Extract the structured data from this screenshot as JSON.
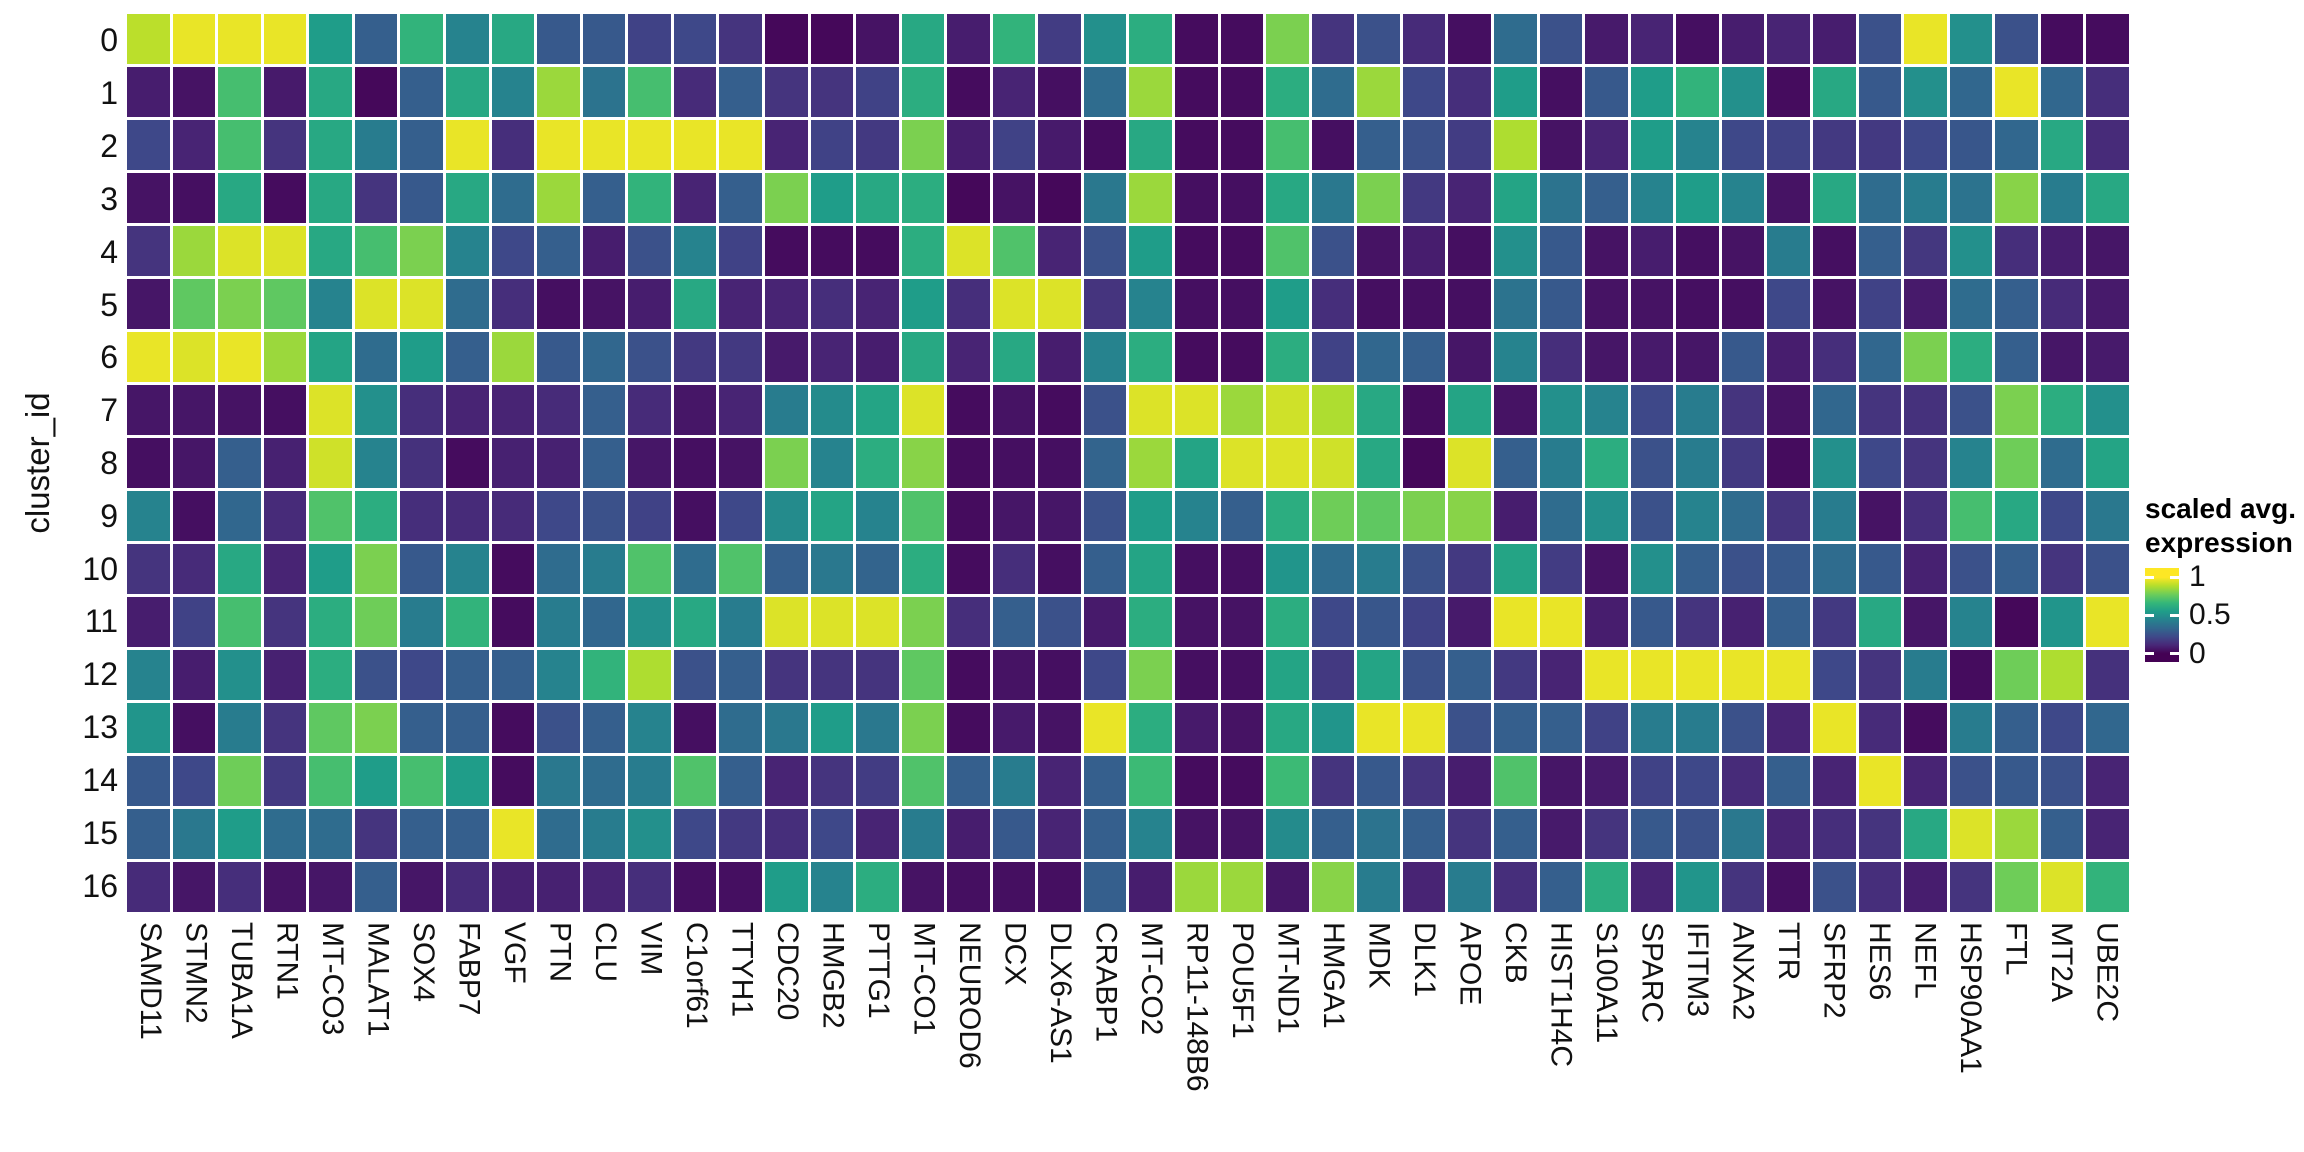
{
  "y_axis": {
    "title": "cluster_id",
    "labels": [
      "0",
      "1",
      "2",
      "3",
      "4",
      "5",
      "6",
      "7",
      "8",
      "9",
      "10",
      "11",
      "12",
      "13",
      "14",
      "15",
      "16"
    ]
  },
  "legend": {
    "title_line1": "scaled avg.",
    "title_line2": "expression",
    "tick_labels": [
      "1",
      "0.5",
      "0"
    ]
  },
  "colors": {
    "background": "#ffffff",
    "cell_gap": "#ffffff",
    "text": "#000000",
    "viridis_stops": [
      "#440154",
      "#482878",
      "#3e4989",
      "#31688e",
      "#26828e",
      "#1f9e89",
      "#35b779",
      "#6dcd59",
      "#b4de2c",
      "#fde725"
    ]
  },
  "chart_data": {
    "type": "heatmap",
    "title": "",
    "xlabel": "",
    "ylabel": "cluster_id",
    "legend_title": "scaled avg. expression",
    "colormap": "viridis",
    "color_range": [
      0,
      1
    ],
    "legend_ticks": [
      1,
      0.5,
      0
    ],
    "grid": "white gaps between tiles",
    "x_categories": [
      "SAMD11",
      "STMN2",
      "TUBA1A",
      "RTN1",
      "MT-CO3",
      "MALAT1",
      "SOX4",
      "FABP7",
      "VGF",
      "PTN",
      "CLU",
      "VIM",
      "C1orf61",
      "TTYH1",
      "CDC20",
      "HMGB2",
      "PTTG1",
      "MT-CO1",
      "NEUROD6",
      "DCX",
      "DLX6-AS1",
      "CRABP1",
      "MT-CO2",
      "RP11-148B6",
      "POU5F1",
      "MT-ND1",
      "HMGA1",
      "MDK",
      "DLK1",
      "APOE",
      "CKB",
      "HIST1H4C",
      "S100A11",
      "SPARC",
      "IFITM3",
      "ANXA2",
      "TTR",
      "SFRP2",
      "HES6",
      "NEFL",
      "HSP90AA1",
      "FTL",
      "MT2A",
      "UBE2C"
    ],
    "y_categories": [
      "0",
      "1",
      "2",
      "3",
      "4",
      "5",
      "6",
      "7",
      "8",
      "9",
      "10",
      "11",
      "12",
      "13",
      "14",
      "15",
      "16"
    ],
    "values": [
      [
        0.9,
        0.97,
        0.97,
        0.97,
        0.55,
        0.3,
        0.65,
        0.45,
        0.6,
        0.28,
        0.28,
        0.2,
        0.22,
        0.15,
        0.02,
        0.02,
        0.05,
        0.6,
        0.08,
        0.65,
        0.18,
        0.5,
        0.62,
        0.03,
        0.03,
        0.8,
        0.15,
        0.25,
        0.12,
        0.04,
        0.35,
        0.25,
        0.07,
        0.1,
        0.04,
        0.08,
        0.1,
        0.08,
        0.25,
        0.97,
        0.5,
        0.25,
        0.03,
        0.03
      ],
      [
        0.08,
        0.05,
        0.7,
        0.07,
        0.6,
        0.02,
        0.3,
        0.6,
        0.45,
        0.85,
        0.38,
        0.7,
        0.12,
        0.3,
        0.15,
        0.15,
        0.2,
        0.62,
        0.03,
        0.1,
        0.04,
        0.35,
        0.85,
        0.03,
        0.03,
        0.62,
        0.35,
        0.85,
        0.22,
        0.13,
        0.55,
        0.04,
        0.28,
        0.55,
        0.65,
        0.5,
        0.03,
        0.6,
        0.28,
        0.5,
        0.33,
        0.97,
        0.33,
        0.13
      ],
      [
        0.22,
        0.1,
        0.7,
        0.15,
        0.6,
        0.42,
        0.3,
        0.97,
        0.13,
        0.97,
        0.97,
        0.97,
        0.97,
        0.97,
        0.1,
        0.2,
        0.17,
        0.8,
        0.08,
        0.2,
        0.07,
        0.03,
        0.6,
        0.03,
        0.03,
        0.7,
        0.04,
        0.3,
        0.25,
        0.18,
        0.88,
        0.05,
        0.1,
        0.55,
        0.45,
        0.22,
        0.2,
        0.17,
        0.17,
        0.22,
        0.27,
        0.33,
        0.6,
        0.12
      ],
      [
        0.05,
        0.04,
        0.6,
        0.03,
        0.6,
        0.15,
        0.28,
        0.6,
        0.35,
        0.85,
        0.3,
        0.65,
        0.1,
        0.3,
        0.8,
        0.55,
        0.6,
        0.62,
        0.02,
        0.05,
        0.02,
        0.4,
        0.85,
        0.04,
        0.04,
        0.6,
        0.4,
        0.8,
        0.17,
        0.1,
        0.58,
        0.38,
        0.3,
        0.45,
        0.55,
        0.45,
        0.05,
        0.6,
        0.35,
        0.42,
        0.38,
        0.82,
        0.42,
        0.6
      ],
      [
        0.15,
        0.85,
        0.95,
        0.95,
        0.6,
        0.7,
        0.8,
        0.45,
        0.22,
        0.3,
        0.08,
        0.25,
        0.45,
        0.2,
        0.03,
        0.03,
        0.03,
        0.62,
        0.95,
        0.72,
        0.1,
        0.25,
        0.55,
        0.03,
        0.03,
        0.72,
        0.25,
        0.05,
        0.08,
        0.04,
        0.5,
        0.28,
        0.05,
        0.08,
        0.04,
        0.05,
        0.42,
        0.04,
        0.3,
        0.16,
        0.5,
        0.13,
        0.08,
        0.06
      ],
      [
        0.06,
        0.75,
        0.8,
        0.75,
        0.45,
        0.95,
        0.95,
        0.35,
        0.13,
        0.04,
        0.05,
        0.08,
        0.6,
        0.1,
        0.1,
        0.13,
        0.1,
        0.55,
        0.13,
        0.95,
        0.95,
        0.15,
        0.45,
        0.04,
        0.04,
        0.55,
        0.13,
        0.04,
        0.04,
        0.04,
        0.38,
        0.28,
        0.05,
        0.05,
        0.04,
        0.04,
        0.22,
        0.05,
        0.2,
        0.07,
        0.35,
        0.3,
        0.12,
        0.07
      ],
      [
        0.97,
        0.95,
        0.97,
        0.85,
        0.58,
        0.35,
        0.55,
        0.3,
        0.85,
        0.28,
        0.33,
        0.25,
        0.17,
        0.17,
        0.07,
        0.1,
        0.08,
        0.6,
        0.1,
        0.6,
        0.08,
        0.45,
        0.62,
        0.03,
        0.03,
        0.62,
        0.2,
        0.33,
        0.3,
        0.06,
        0.45,
        0.13,
        0.06,
        0.07,
        0.06,
        0.28,
        0.08,
        0.13,
        0.33,
        0.8,
        0.62,
        0.3,
        0.06,
        0.07
      ],
      [
        0.06,
        0.06,
        0.05,
        0.04,
        0.95,
        0.5,
        0.13,
        0.1,
        0.1,
        0.12,
        0.3,
        0.12,
        0.06,
        0.1,
        0.42,
        0.48,
        0.58,
        0.95,
        0.03,
        0.05,
        0.03,
        0.25,
        0.95,
        0.95,
        0.85,
        0.93,
        0.88,
        0.6,
        0.03,
        0.58,
        0.05,
        0.5,
        0.45,
        0.22,
        0.42,
        0.15,
        0.05,
        0.33,
        0.15,
        0.14,
        0.25,
        0.8,
        0.62,
        0.5
      ],
      [
        0.04,
        0.06,
        0.3,
        0.09,
        0.93,
        0.45,
        0.14,
        0.03,
        0.09,
        0.09,
        0.3,
        0.06,
        0.04,
        0.05,
        0.8,
        0.45,
        0.62,
        0.82,
        0.03,
        0.04,
        0.04,
        0.32,
        0.85,
        0.58,
        0.95,
        0.95,
        0.93,
        0.6,
        0.02,
        0.95,
        0.3,
        0.42,
        0.62,
        0.25,
        0.42,
        0.17,
        0.03,
        0.5,
        0.22,
        0.15,
        0.45,
        0.78,
        0.35,
        0.58
      ],
      [
        0.45,
        0.04,
        0.33,
        0.12,
        0.72,
        0.62,
        0.13,
        0.12,
        0.12,
        0.22,
        0.25,
        0.2,
        0.04,
        0.22,
        0.48,
        0.58,
        0.45,
        0.72,
        0.03,
        0.06,
        0.06,
        0.25,
        0.55,
        0.45,
        0.3,
        0.62,
        0.78,
        0.75,
        0.8,
        0.82,
        0.08,
        0.35,
        0.5,
        0.25,
        0.45,
        0.35,
        0.15,
        0.42,
        0.05,
        0.13,
        0.7,
        0.6,
        0.22,
        0.4
      ],
      [
        0.15,
        0.12,
        0.6,
        0.1,
        0.55,
        0.8,
        0.28,
        0.45,
        0.03,
        0.35,
        0.42,
        0.72,
        0.35,
        0.72,
        0.3,
        0.4,
        0.32,
        0.62,
        0.03,
        0.13,
        0.04,
        0.3,
        0.58,
        0.04,
        0.04,
        0.52,
        0.35,
        0.42,
        0.25,
        0.17,
        0.58,
        0.18,
        0.05,
        0.5,
        0.3,
        0.25,
        0.28,
        0.35,
        0.28,
        0.09,
        0.25,
        0.3,
        0.15,
        0.25
      ],
      [
        0.08,
        0.2,
        0.7,
        0.15,
        0.62,
        0.78,
        0.42,
        0.65,
        0.03,
        0.42,
        0.33,
        0.5,
        0.6,
        0.42,
        0.95,
        0.95,
        0.95,
        0.8,
        0.13,
        0.3,
        0.25,
        0.07,
        0.62,
        0.05,
        0.05,
        0.62,
        0.22,
        0.27,
        0.2,
        0.07,
        0.97,
        0.97,
        0.08,
        0.28,
        0.15,
        0.09,
        0.3,
        0.17,
        0.6,
        0.06,
        0.45,
        0.02,
        0.52,
        0.97
      ],
      [
        0.45,
        0.08,
        0.5,
        0.09,
        0.62,
        0.25,
        0.22,
        0.3,
        0.3,
        0.45,
        0.65,
        0.88,
        0.25,
        0.3,
        0.15,
        0.15,
        0.15,
        0.75,
        0.03,
        0.05,
        0.04,
        0.22,
        0.8,
        0.04,
        0.04,
        0.58,
        0.17,
        0.58,
        0.25,
        0.3,
        0.17,
        0.1,
        0.97,
        0.97,
        0.97,
        0.97,
        0.97,
        0.22,
        0.15,
        0.42,
        0.03,
        0.78,
        0.88,
        0.14
      ],
      [
        0.52,
        0.04,
        0.42,
        0.15,
        0.75,
        0.8,
        0.3,
        0.3,
        0.03,
        0.25,
        0.3,
        0.45,
        0.04,
        0.35,
        0.4,
        0.55,
        0.4,
        0.8,
        0.03,
        0.07,
        0.05,
        0.97,
        0.62,
        0.07,
        0.05,
        0.6,
        0.52,
        0.97,
        0.97,
        0.25,
        0.3,
        0.3,
        0.2,
        0.42,
        0.42,
        0.25,
        0.1,
        0.97,
        0.12,
        0.03,
        0.42,
        0.3,
        0.22,
        0.33
      ],
      [
        0.28,
        0.22,
        0.78,
        0.17,
        0.7,
        0.55,
        0.7,
        0.55,
        0.03,
        0.4,
        0.35,
        0.42,
        0.72,
        0.3,
        0.1,
        0.15,
        0.18,
        0.72,
        0.3,
        0.42,
        0.1,
        0.3,
        0.68,
        0.03,
        0.03,
        0.68,
        0.15,
        0.28,
        0.15,
        0.08,
        0.72,
        0.06,
        0.07,
        0.2,
        0.22,
        0.12,
        0.3,
        0.1,
        0.97,
        0.1,
        0.25,
        0.28,
        0.25,
        0.1
      ],
      [
        0.3,
        0.4,
        0.55,
        0.35,
        0.35,
        0.15,
        0.3,
        0.3,
        0.97,
        0.35,
        0.42,
        0.5,
        0.22,
        0.17,
        0.13,
        0.22,
        0.1,
        0.42,
        0.08,
        0.28,
        0.1,
        0.3,
        0.45,
        0.05,
        0.05,
        0.48,
        0.3,
        0.38,
        0.3,
        0.15,
        0.3,
        0.07,
        0.15,
        0.28,
        0.25,
        0.4,
        0.1,
        0.13,
        0.15,
        0.6,
        0.95,
        0.85,
        0.3,
        0.1
      ],
      [
        0.12,
        0.06,
        0.13,
        0.05,
        0.06,
        0.3,
        0.06,
        0.12,
        0.09,
        0.09,
        0.1,
        0.13,
        0.04,
        0.04,
        0.55,
        0.45,
        0.62,
        0.05,
        0.04,
        0.04,
        0.04,
        0.3,
        0.08,
        0.85,
        0.85,
        0.06,
        0.82,
        0.42,
        0.1,
        0.42,
        0.13,
        0.3,
        0.62,
        0.1,
        0.52,
        0.15,
        0.04,
        0.25,
        0.13,
        0.08,
        0.15,
        0.78,
        0.95,
        0.65
      ]
    ]
  }
}
